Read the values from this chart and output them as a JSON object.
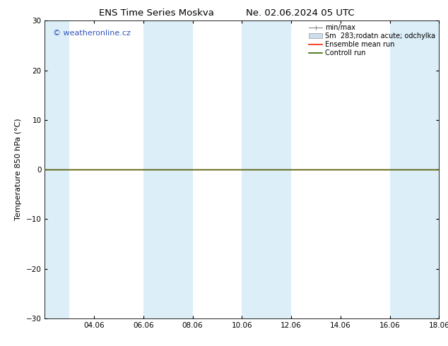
{
  "title_left": "ENS Time Series Moskva",
  "title_right": "Ne. 02.06.2024 05 UTC",
  "ylabel": "Temperature 850 hPa (°C)",
  "ylim": [
    -30,
    30
  ],
  "yticks": [
    -30,
    -20,
    -10,
    0,
    10,
    20,
    30
  ],
  "xtick_labels": [
    "04.06",
    "06.06",
    "08.06",
    "10.06",
    "12.06",
    "14.06",
    "16.06",
    "18.06"
  ],
  "xtick_positions": [
    2,
    4,
    6,
    8,
    10,
    12,
    14,
    16
  ],
  "xlim": [
    0,
    16
  ],
  "shaded_bands": [
    [
      0,
      1
    ],
    [
      4,
      6
    ],
    [
      8,
      10
    ],
    [
      14,
      16
    ]
  ],
  "band_color": "#dceef8",
  "control_run_color": "#336600",
  "ensemble_mean_color": "#ff2200",
  "minmax_color": "#888888",
  "sm_band_color": "#ccddee",
  "legend_entries": [
    "min/max",
    "Sm  283;rodatn acute; odchylka",
    "Ensemble mean run",
    "Controll run"
  ],
  "watermark": "© weatheronline.cz",
  "watermark_color": "#3355bb",
  "background_color": "#ffffff",
  "title_fontsize": 9.5,
  "tick_fontsize": 7.5,
  "ylabel_fontsize": 8,
  "legend_fontsize": 7,
  "watermark_fontsize": 8
}
